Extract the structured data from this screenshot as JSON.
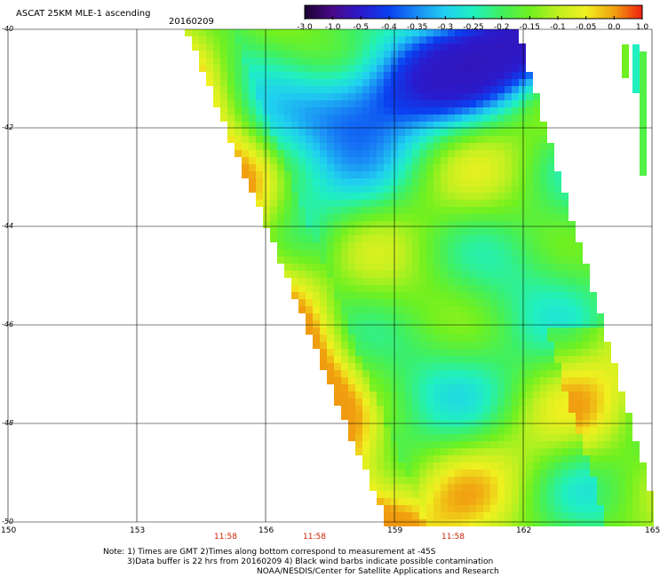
{
  "title": "ASCAT 25KM MLE-1 ascending",
  "date": "20160209",
  "colorbar": {
    "labels": [
      "-3.0",
      "-1.0",
      "-0.5",
      "-0.4",
      "-0.35",
      "-0.3",
      "-0.25",
      "-0.2",
      "-0.15",
      "-0.1",
      "-0.05",
      "0.0",
      "1.0"
    ],
    "colors": [
      "#1a0033",
      "#4a0a8a",
      "#2a1acc",
      "#0a40f0",
      "#1a8cf5",
      "#20d0f0",
      "#20f0c0",
      "#40f060",
      "#70f020",
      "#c0f020",
      "#f0f020",
      "#f0a010",
      "#f02010"
    ]
  },
  "map": {
    "lat_range": [
      -50,
      -40
    ],
    "lon_range": [
      150,
      165
    ],
    "lat_labels": [
      "-40",
      "-42",
      "-44",
      "-46",
      "-48",
      "-50"
    ],
    "lon_labels": [
      "150",
      "153",
      "156",
      "159",
      "162",
      "165"
    ],
    "gmt_times": [
      "11:58",
      "11:58",
      "11:58"
    ]
  },
  "notes": [
    "Note: 1) Times are GMT 2)Times along bottom correspond to measurement at -45S",
    "3)Data buffer is 22 hrs from 20160209 4) Black wind barbs indicate possible contamination",
    "NOAA/NESDIS/Center for Satellite Applications and Research"
  ]
}
